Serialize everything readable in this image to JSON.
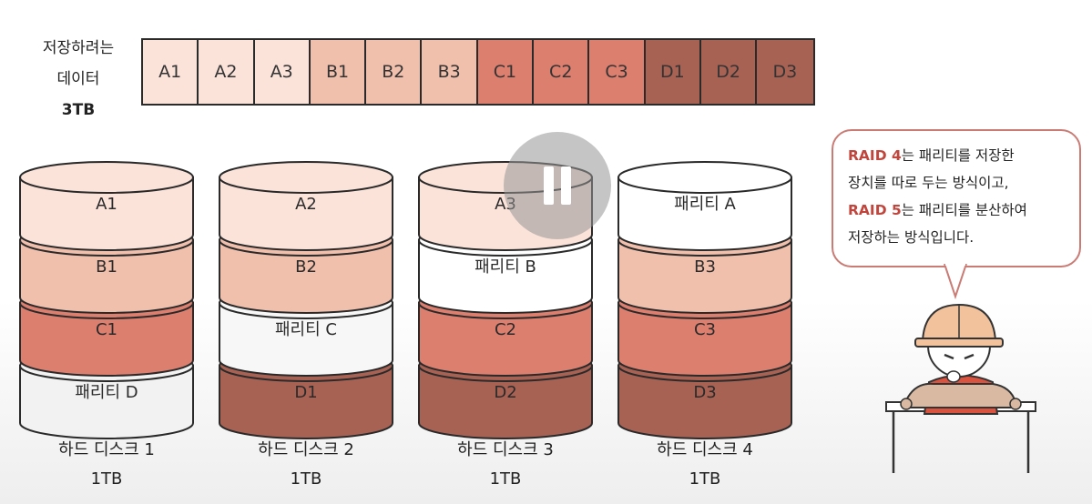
{
  "data_label": {
    "line1": "저장하려는",
    "line2": "데이터",
    "size": "3TB"
  },
  "blocks": [
    {
      "label": "A1",
      "color": "#fbe3da"
    },
    {
      "label": "A2",
      "color": "#fbe3da"
    },
    {
      "label": "A3",
      "color": "#fbe3da"
    },
    {
      "label": "B1",
      "color": "#f1c0ad"
    },
    {
      "label": "B2",
      "color": "#f1c0ad"
    },
    {
      "label": "B3",
      "color": "#f1c0ad"
    },
    {
      "label": "C1",
      "color": "#dc7f6f"
    },
    {
      "label": "C2",
      "color": "#dc7f6f"
    },
    {
      "label": "C3",
      "color": "#dc7f6f"
    },
    {
      "label": "D1",
      "color": "#a86254"
    },
    {
      "label": "D2",
      "color": "#a86254"
    },
    {
      "label": "D3",
      "color": "#a86254"
    }
  ],
  "disks": [
    {
      "name": "하드 디스크 1",
      "capacity": "1TB",
      "layers": [
        {
          "label": "A1",
          "color": "#fbe3da"
        },
        {
          "label": "B1",
          "color": "#f1c0ad"
        },
        {
          "label": "C1",
          "color": "#dc7f6f"
        },
        {
          "label": "패리티 D",
          "color": "#f2f2f2"
        }
      ]
    },
    {
      "name": "하드 디스크 2",
      "capacity": "1TB",
      "layers": [
        {
          "label": "A2",
          "color": "#fbe3da"
        },
        {
          "label": "B2",
          "color": "#f1c0ad"
        },
        {
          "label": "패리티 C",
          "color": "#f7f7f7"
        },
        {
          "label": "D1",
          "color": "#a86254"
        }
      ]
    },
    {
      "name": "하드 디스크 3",
      "capacity": "1TB",
      "layers": [
        {
          "label": "A3",
          "color": "#fbe3da"
        },
        {
          "label": "패리티 B",
          "color": "#ffffff"
        },
        {
          "label": "C2",
          "color": "#dc7f6f"
        },
        {
          "label": "D2",
          "color": "#a86254"
        }
      ]
    },
    {
      "name": "하드 디스크 4",
      "capacity": "1TB",
      "layers": [
        {
          "label": "패리티 A",
          "color": "#ffffff"
        },
        {
          "label": "B3",
          "color": "#f1c0ad"
        },
        {
          "label": "C3",
          "color": "#dc7f6f"
        },
        {
          "label": "D3",
          "color": "#a86254"
        }
      ]
    }
  ],
  "bubble": {
    "l1_hl": "RAID 4",
    "l1": "는 패리티를 저장한",
    "l2": "장치를 따로 두는 방식이고,",
    "l3_hl": "RAID 5",
    "l3": "는 패리티를 분산하여",
    "l4": "저장하는 방식입니다."
  },
  "worker_logo": "CS",
  "colors": {
    "accent": "#c0453c",
    "outline": "#2a2a2a"
  }
}
